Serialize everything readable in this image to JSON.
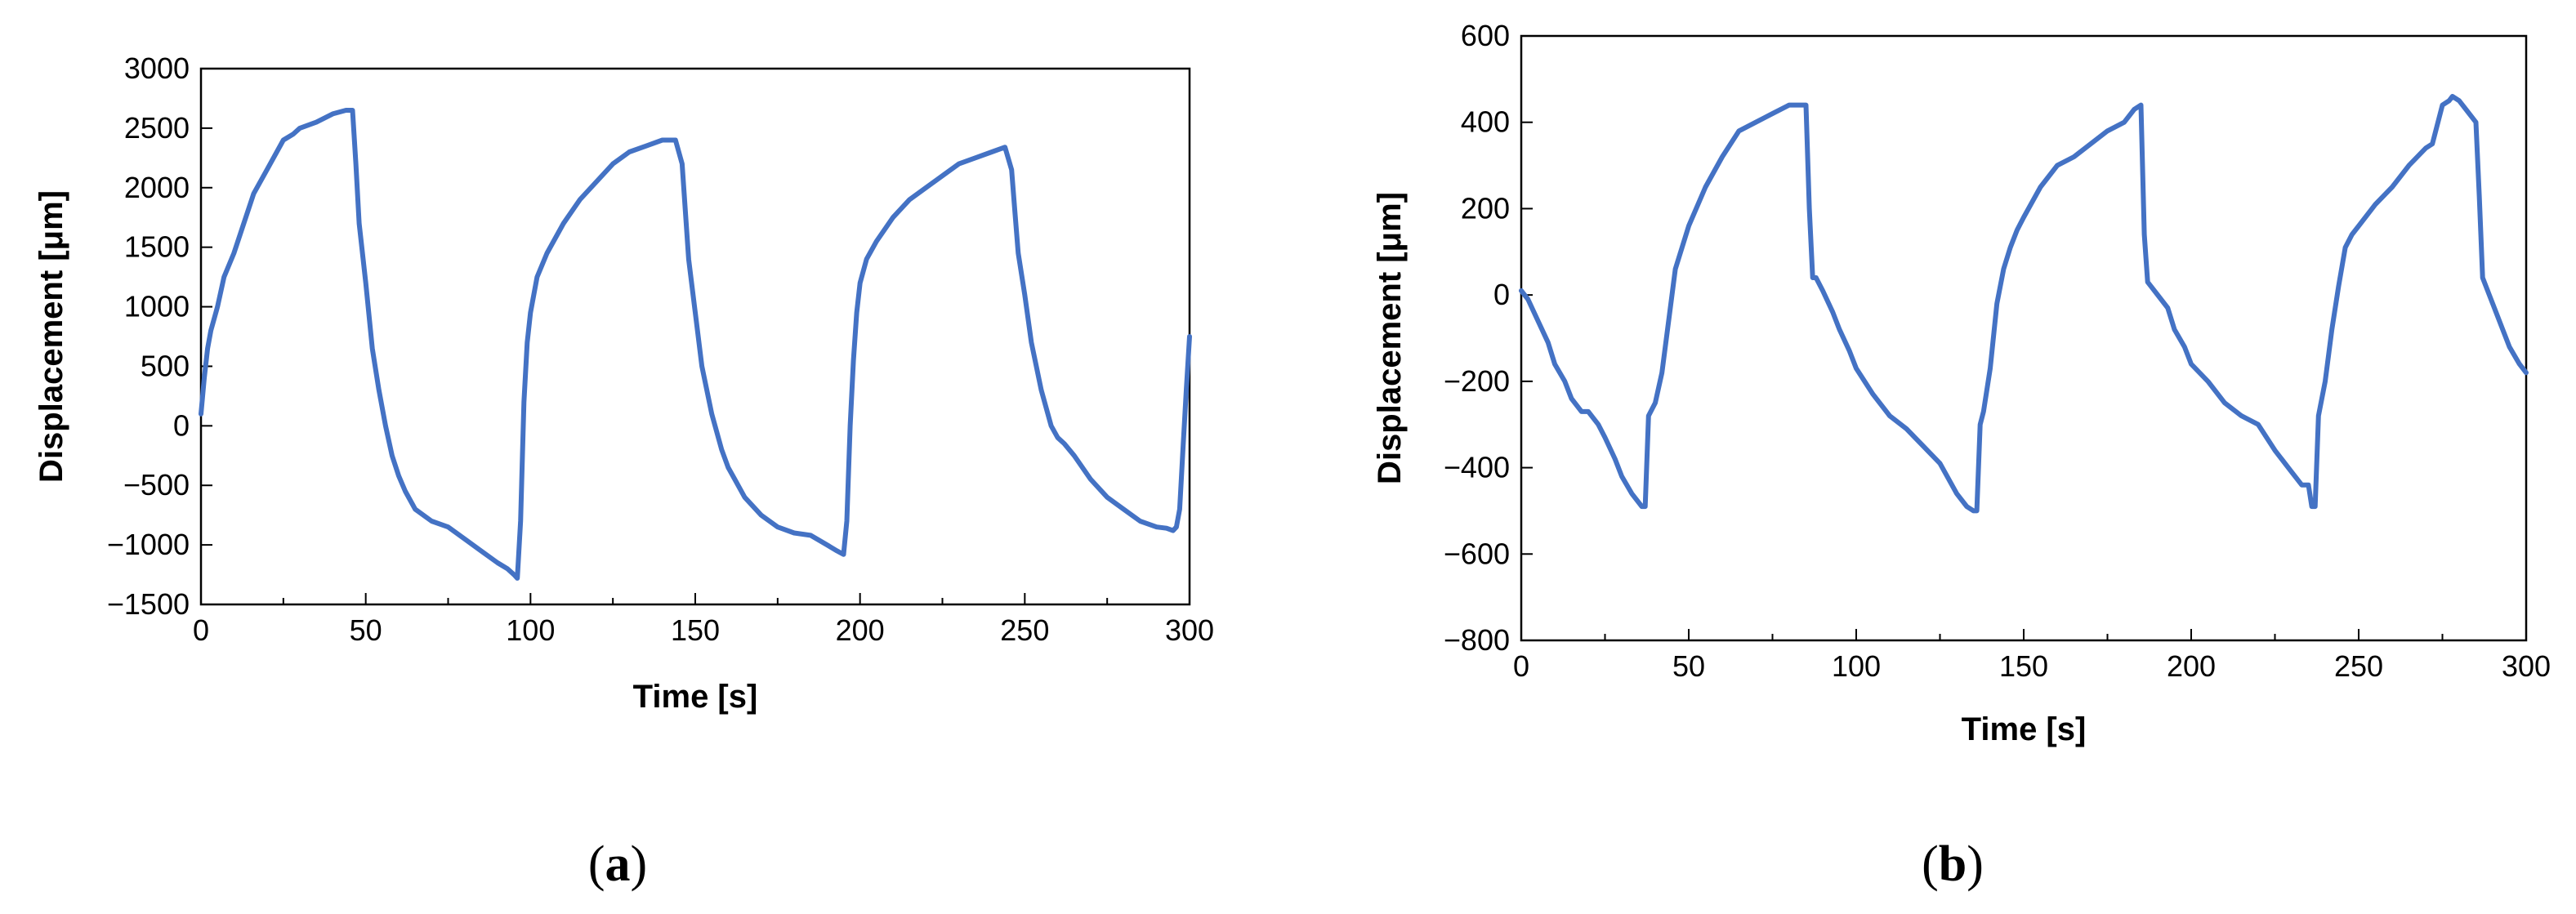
{
  "chart_data": [
    {
      "type": "line",
      "panel": "(a)",
      "panel_label": {
        "open": "(",
        "letter": "a",
        "close": ")"
      },
      "xlabel": "Time [s]",
      "ylabel": "Displacement [μm]",
      "xlim": [
        0,
        300
      ],
      "ylim": [
        -1500,
        3000
      ],
      "xticks": [
        0,
        50,
        100,
        150,
        200,
        250,
        300
      ],
      "yticks": [
        -1500,
        -1000,
        -500,
        0,
        500,
        1000,
        1500,
        2000,
        2500,
        3000
      ],
      "grid": false,
      "color": "#4472C4",
      "series": [
        {
          "x": [
            0,
            1,
            2,
            3,
            5,
            7,
            10,
            13,
            16,
            20,
            25,
            28,
            30,
            35,
            40,
            44,
            46,
            47,
            48,
            50,
            52,
            54,
            56,
            58,
            60,
            62,
            65,
            70,
            75,
            80,
            85,
            90,
            93,
            95,
            96,
            97,
            98,
            99,
            100,
            102,
            105,
            110,
            115,
            120,
            125,
            130,
            135,
            140,
            144,
            146,
            147,
            148,
            150,
            152,
            155,
            158,
            160,
            162,
            165,
            170,
            175,
            180,
            185,
            190,
            193,
            195,
            196,
            197,
            198,
            199,
            200,
            202,
            205,
            210,
            215,
            220,
            225,
            230,
            235,
            240,
            244,
            246,
            247,
            248,
            250,
            252,
            255,
            258,
            260,
            262,
            265,
            270,
            275,
            280,
            285,
            290,
            293,
            295,
            296,
            297,
            298,
            299,
            300
          ],
          "y": [
            100,
            400,
            650,
            800,
            1000,
            1250,
            1450,
            1700,
            1950,
            2150,
            2400,
            2450,
            2500,
            2550,
            2620,
            2650,
            2650,
            2200,
            1700,
            1200,
            650,
            300,
            0,
            -250,
            -420,
            -550,
            -700,
            -800,
            -850,
            -950,
            -1050,
            -1150,
            -1200,
            -1250,
            -1280,
            -800,
            200,
            700,
            950,
            1250,
            1450,
            1700,
            1900,
            2050,
            2200,
            2300,
            2350,
            2400,
            2400,
            2200,
            1800,
            1400,
            950,
            500,
            100,
            -200,
            -350,
            -450,
            -600,
            -750,
            -850,
            -900,
            -920,
            -1000,
            -1050,
            -1080,
            -800,
            0,
            550,
            950,
            1200,
            1400,
            1550,
            1750,
            1900,
            2000,
            2100,
            2200,
            2250,
            2300,
            2340,
            2150,
            1800,
            1450,
            1100,
            700,
            300,
            0,
            -100,
            -150,
            -250,
            -450,
            -600,
            -700,
            -800,
            -850,
            -860,
            -880,
            -850,
            -700,
            -200,
            300,
            750
          ]
        }
      ]
    },
    {
      "type": "line",
      "panel": "(b)",
      "panel_label": {
        "open": "(",
        "letter": "b",
        "close": ")"
      },
      "xlabel": "Time [s]",
      "ylabel": "Displacement [μm]",
      "xlim": [
        0,
        300
      ],
      "ylim": [
        -800,
        600
      ],
      "xticks": [
        0,
        50,
        100,
        150,
        200,
        250,
        300
      ],
      "yticks": [
        -800,
        -600,
        -400,
        -200,
        0,
        200,
        400,
        600
      ],
      "grid": false,
      "color": "#4472C4",
      "series": [
        {
          "x": [
            0,
            2,
            5,
            8,
            10,
            13,
            15,
            18,
            20,
            23,
            25,
            28,
            30,
            33,
            36,
            37,
            38,
            40,
            42,
            44,
            46,
            48,
            50,
            55,
            60,
            65,
            70,
            75,
            80,
            83,
            85,
            86,
            87,
            88,
            90,
            93,
            95,
            98,
            100,
            105,
            110,
            115,
            120,
            125,
            130,
            133,
            135,
            136,
            137,
            138,
            140,
            142,
            143,
            144,
            146,
            148,
            150,
            155,
            160,
            165,
            170,
            175,
            180,
            183,
            185,
            186,
            187,
            188,
            190,
            193,
            195,
            198,
            200,
            205,
            210,
            215,
            220,
            225,
            230,
            233,
            235,
            236,
            237,
            238,
            240,
            242,
            244,
            246,
            248,
            250,
            255,
            260,
            265,
            270,
            272,
            275,
            277,
            278,
            280,
            283,
            285,
            286,
            287,
            288,
            290,
            293,
            295,
            298,
            300
          ],
          "y": [
            10,
            -10,
            -60,
            -110,
            -160,
            -200,
            -240,
            -270,
            -270,
            -300,
            -330,
            -380,
            -420,
            -460,
            -490,
            -490,
            -280,
            -250,
            -180,
            -60,
            60,
            110,
            160,
            250,
            320,
            380,
            400,
            420,
            440,
            440,
            440,
            200,
            40,
            40,
            10,
            -40,
            -80,
            -130,
            -170,
            -230,
            -280,
            -310,
            -350,
            -390,
            -460,
            -490,
            -500,
            -500,
            -300,
            -270,
            -170,
            -20,
            20,
            60,
            110,
            150,
            180,
            250,
            300,
            320,
            350,
            380,
            400,
            430,
            440,
            140,
            30,
            20,
            0,
            -30,
            -80,
            -120,
            -160,
            -200,
            -250,
            -280,
            -300,
            -360,
            -410,
            -440,
            -440,
            -490,
            -490,
            -280,
            -200,
            -80,
            20,
            110,
            140,
            160,
            210,
            250,
            300,
            340,
            350,
            440,
            450,
            460,
            450,
            420,
            400,
            230,
            40,
            20,
            -20,
            -80,
            -120,
            -160,
            -180
          ]
        }
      ]
    }
  ]
}
